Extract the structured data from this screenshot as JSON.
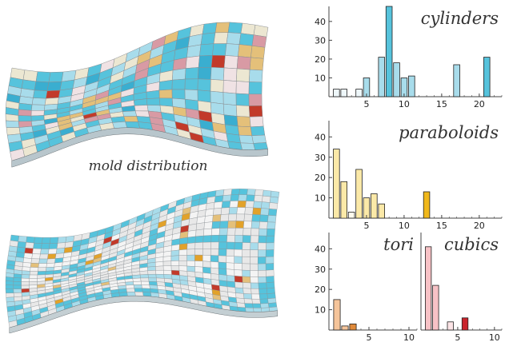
{
  "caption": "mold distribution",
  "surfaces": [
    {
      "name": "mold-surface-coarse",
      "cols": 20,
      "rows": 12,
      "palette": [
        "#56c3dc",
        "#a8dceb",
        "#ece7d2",
        "#e4c07a",
        "#d89aa4",
        "#f0e2e4",
        "#c23a2a",
        "#f2f2f2",
        "#3aaed0"
      ]
    },
    {
      "name": "mold-surface-fine",
      "cols": 34,
      "rows": 20,
      "palette": [
        "#56c3dc",
        "#a8dceb",
        "#e8e8e8",
        "#f4f4f4",
        "#ffffff",
        "#e2a22a",
        "#c23a2a",
        "#e4c07a"
      ]
    }
  ],
  "chart_data": [
    {
      "type": "bar",
      "title": "cylinders",
      "x": [
        1,
        2,
        4,
        5,
        7,
        8,
        9,
        10,
        11,
        17,
        21
      ],
      "values": [
        4,
        4,
        4,
        10,
        21,
        48,
        18,
        10,
        11,
        17,
        21
      ],
      "highlight": [
        8,
        21
      ],
      "colors": {
        "fill": "#a8dceb",
        "highlight": "#56c3dc",
        "low": "#eef7fa"
      },
      "xlim": [
        0,
        23
      ],
      "ylim": [
        0,
        48
      ],
      "xticks": [
        5,
        10,
        15,
        20
      ],
      "yticks": [
        10,
        20,
        30,
        40
      ]
    },
    {
      "type": "bar",
      "title": "paraboloids",
      "x": [
        1,
        2,
        3,
        4,
        5,
        6,
        7,
        13
      ],
      "values": [
        34,
        18,
        3,
        24,
        10,
        12,
        7,
        13
      ],
      "highlight": [
        13
      ],
      "colors": {
        "fill": "#fbe9a8",
        "highlight": "#f0b81a",
        "low": "#fefbee"
      },
      "xlim": [
        0,
        23
      ],
      "ylim": [
        0,
        48
      ],
      "xticks": [
        5,
        10,
        15,
        20
      ],
      "yticks": [
        10,
        20,
        30,
        40
      ]
    },
    {
      "type": "bar",
      "title": "tori",
      "x": [
        1,
        2,
        3
      ],
      "values": [
        15,
        2,
        3
      ],
      "highlight": [
        3
      ],
      "colors": {
        "fill": "#f5c49a",
        "highlight": "#e08a3a",
        "low": "#f5c49a"
      },
      "xlim": [
        0,
        11
      ],
      "ylim": [
        0,
        48
      ],
      "xticks": [
        5,
        10
      ],
      "yticks": [
        10,
        20,
        30,
        40
      ]
    },
    {
      "type": "bar",
      "title": "cubics",
      "x": [
        1,
        2,
        4,
        6
      ],
      "values": [
        41,
        22,
        4,
        6
      ],
      "highlight": [
        6
      ],
      "colors": {
        "fill": "#f7c2c6",
        "highlight": "#c9242c",
        "low": "#fce4e6"
      },
      "xlim": [
        0,
        11
      ],
      "ylim": [
        0,
        48
      ],
      "xticks": [
        5,
        10
      ],
      "yticks": []
    }
  ]
}
